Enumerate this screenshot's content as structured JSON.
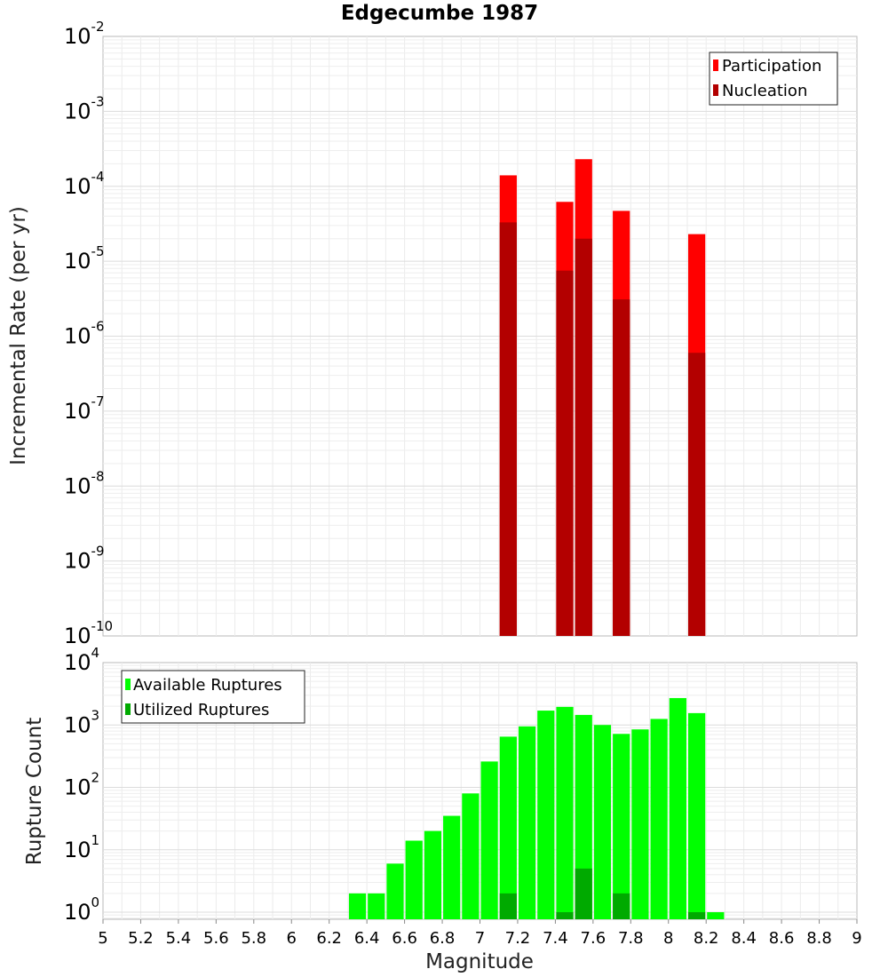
{
  "chart_data": {
    "title": "Edgecumbe 1987",
    "xlabel": "Magnitude",
    "xlim": [
      5,
      9
    ],
    "xticks": [
      "5",
      "5.2",
      "5.4",
      "5.6",
      "5.8",
      "6",
      "6.2",
      "6.4",
      "6.6",
      "6.8",
      "7",
      "7.2",
      "7.4",
      "7.6",
      "7.8",
      "8",
      "8.2",
      "8.4",
      "8.6",
      "8.8",
      "9"
    ],
    "bin_width": 0.1,
    "grid": true,
    "panels": [
      {
        "type": "bar",
        "ylabel": "Incremental Rate (per yr)",
        "yscale": "log",
        "ylim": [
          1e-10,
          0.01
        ],
        "yticks": [
          {
            "base": "10",
            "exp": "-10"
          },
          {
            "base": "10",
            "exp": "-9"
          },
          {
            "base": "10",
            "exp": "-8"
          },
          {
            "base": "10",
            "exp": "-7"
          },
          {
            "base": "10",
            "exp": "-6"
          },
          {
            "base": "10",
            "exp": "-5"
          },
          {
            "base": "10",
            "exp": "-4"
          },
          {
            "base": "10",
            "exp": "-3"
          },
          {
            "base": "10",
            "exp": "-2"
          }
        ],
        "legend_position": "top-right",
        "series": [
          {
            "name": "Participation",
            "color": "#ff0000",
            "x": [
              7.15,
              7.45,
              7.55,
              7.75,
              8.15
            ],
            "values": [
              0.00014,
              6.2e-05,
              0.00023,
              4.7e-05,
              2.3e-05
            ]
          },
          {
            "name": "Nucleation",
            "color": "#b30000",
            "x": [
              7.15,
              7.45,
              7.55,
              7.75,
              8.15
            ],
            "values": [
              3.3e-05,
              7.5e-06,
              2e-05,
              3.1e-06,
              6e-07
            ]
          }
        ]
      },
      {
        "type": "bar",
        "ylabel": "Rupture Count",
        "yscale": "log",
        "ylim": [
          0.77,
          10000
        ],
        "yticks": [
          {
            "base": "10",
            "exp": "0"
          },
          {
            "base": "10",
            "exp": "1"
          },
          {
            "base": "10",
            "exp": "2"
          },
          {
            "base": "10",
            "exp": "3"
          },
          {
            "base": "10",
            "exp": "4"
          }
        ],
        "legend_position": "top-left",
        "series": [
          {
            "name": "Available Ruptures",
            "color": "#00ff00",
            "x": [
              6.35,
              6.45,
              6.55,
              6.65,
              6.75,
              6.85,
              6.95,
              7.05,
              7.15,
              7.25,
              7.35,
              7.45,
              7.55,
              7.65,
              7.75,
              7.85,
              7.95,
              8.05,
              8.15,
              8.25
            ],
            "values": [
              2,
              2,
              6,
              14,
              20,
              35,
              80,
              260,
              650,
              950,
              1700,
              1950,
              1450,
              1000,
              720,
              850,
              1250,
              2700,
              1550,
              1
            ]
          },
          {
            "name": "Utilized Ruptures",
            "color": "#00aa00",
            "x": [
              7.15,
              7.45,
              7.55,
              7.75,
              8.15
            ],
            "values": [
              2,
              1,
              5,
              2,
              1
            ]
          }
        ]
      }
    ]
  }
}
